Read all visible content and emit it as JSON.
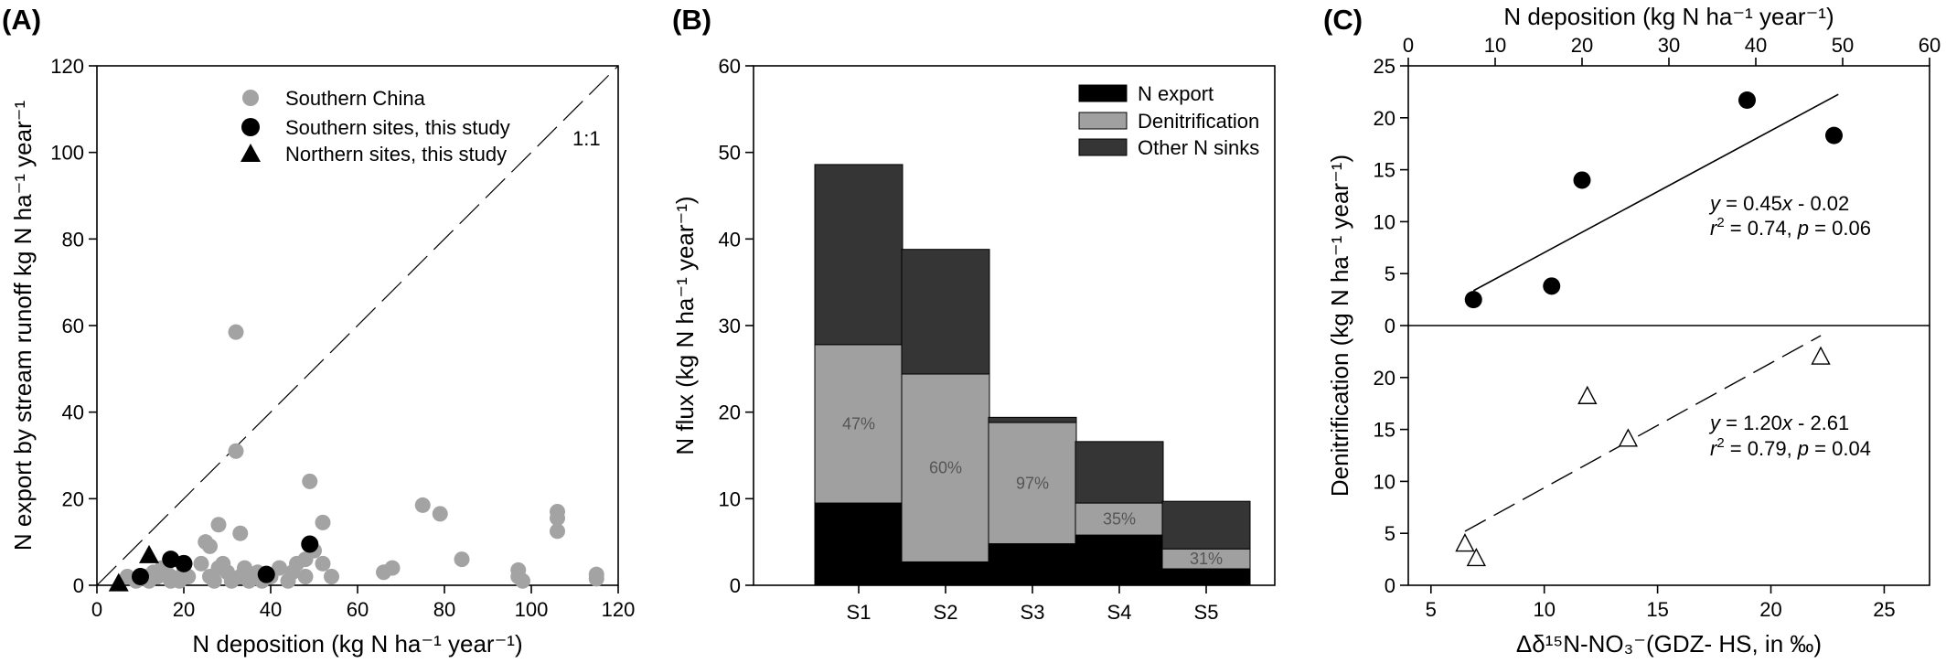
{
  "colors": {
    "gray": "#a3a3a3",
    "black": "#000000",
    "dark": "#353535",
    "mid": "#a0a0a0",
    "pct": "#555555"
  },
  "chart_data": [
    {
      "panel": "(A)",
      "type": "scatter",
      "xlabel": "N deposition (kg N ha⁻¹ year⁻¹)",
      "ylabel": "N export by stream runoff kg N ha⁻¹ year⁻¹",
      "xlim": [
        0,
        120
      ],
      "ylim": [
        0,
        120
      ],
      "xticks": [
        0,
        20,
        40,
        60,
        80,
        100,
        120
      ],
      "yticks": [
        0,
        20,
        40,
        60,
        80,
        100,
        120
      ],
      "ref_line_label": "1:1",
      "legend_position": "top-center",
      "series": [
        {
          "name": "Southern China",
          "marker": "circle",
          "color": "#a3a3a3",
          "x": [
            7,
            9,
            11,
            12,
            13,
            14,
            15,
            16,
            17,
            17,
            19,
            20,
            21,
            24,
            25,
            26,
            26,
            27,
            28,
            28,
            29,
            30,
            31,
            32,
            32,
            33,
            33,
            34,
            35,
            36,
            37,
            38,
            40,
            42,
            44,
            45,
            46,
            48,
            48,
            49,
            50,
            52,
            52,
            54,
            66,
            68,
            75,
            79,
            84,
            97,
            97,
            98,
            106,
            106,
            106,
            115,
            115
          ],
          "y": [
            2,
            1,
            2,
            1,
            3,
            2,
            4,
            3,
            1,
            2,
            1,
            3,
            2,
            5,
            10,
            9,
            2,
            1,
            14,
            4,
            5,
            3,
            1,
            58.5,
            31,
            12,
            2,
            4,
            1,
            2,
            3,
            1,
            2,
            4,
            1,
            3,
            5,
            6,
            2,
            24,
            8,
            5,
            14.5,
            2,
            3,
            4,
            18.5,
            16.5,
            6,
            3.5,
            2,
            1,
            17,
            15.5,
            12.5,
            2.5,
            1.5
          ]
        },
        {
          "name": "Southern sites, this study",
          "marker": "circle",
          "color": "#000000",
          "x": [
            10,
            17,
            20,
            39,
            49
          ],
          "y": [
            2,
            6,
            5,
            2.5,
            9.5
          ]
        },
        {
          "name": "Northern sites, this study",
          "marker": "triangle",
          "color": "#000000",
          "x": [
            5,
            12
          ],
          "y": [
            0.5,
            7
          ]
        }
      ]
    },
    {
      "panel": "(B)",
      "type": "bar",
      "stacked": true,
      "ylabel": "N flux (kg N ha⁻¹ year⁻¹)",
      "ylim": [
        0,
        60
      ],
      "yticks": [
        0,
        10,
        20,
        30,
        40,
        50,
        60
      ],
      "categories": [
        "S1",
        "S2",
        "S3",
        "S4",
        "S5"
      ],
      "legend_position": "top-right",
      "series": [
        {
          "name": "N export",
          "color": "#000000",
          "values": [
            9.5,
            2.7,
            4.8,
            5.8,
            1.9
          ]
        },
        {
          "name": "Denitrification",
          "color": "#a0a0a0",
          "values": [
            18.3,
            21.7,
            14.0,
            3.7,
            2.3
          ]
        },
        {
          "name": "Other N sinks",
          "color": "#353535",
          "values": [
            20.8,
            14.4,
            0.6,
            7.1,
            5.5
          ]
        }
      ],
      "percent_labels": [
        "47%",
        "60%",
        "97%",
        "35%",
        "31%"
      ]
    },
    {
      "panel": "(C)",
      "type": "scatter",
      "ylabel": "Denitrification (kg N ha⁻¹ year⁻¹)",
      "top_xlabel": "N deposition (kg N ha⁻¹ year⁻¹)",
      "bottom_xlabel": "Δδ¹⁵N-NO₃⁻(GDZ-  HS, in ‰)",
      "top_xlim": [
        0,
        60
      ],
      "top_xticks": [
        0,
        10,
        20,
        30,
        40,
        50,
        60
      ],
      "bottom_xlim": [
        4,
        27
      ],
      "bottom_xticks": [
        5,
        10,
        15,
        20,
        25
      ],
      "upper_ylim": [
        0,
        25
      ],
      "upper_yticks": [
        0,
        5,
        10,
        15,
        20,
        25
      ],
      "lower_ylim": [
        0,
        25
      ],
      "lower_yticks": [
        0,
        5,
        10,
        15,
        20
      ],
      "upper": {
        "x_axis": "N deposition",
        "marker": "circle-filled",
        "x": [
          7.5,
          16.5,
          20,
          39,
          49
        ],
        "y": [
          2.5,
          3.8,
          14,
          21.7,
          18.3
        ],
        "fit": {
          "slope": 0.45,
          "intercept": -0.02,
          "x_range": [
            7.5,
            49.5
          ],
          "style": "solid"
        },
        "eq_prefix": "y",
        "eq_body": " = 0.45",
        "eq_x": "x",
        "eq_tail": " - 0.02",
        "r2_prefix": "r",
        "r2_sup": "2",
        "r2_body": " = 0.74, ",
        "p_prefix": "p",
        "p_body": " = 0.06"
      },
      "lower": {
        "x_axis": "Δδ¹⁵N-NO₃⁻",
        "marker": "triangle-open",
        "x": [
          6.5,
          7.0,
          11.9,
          13.7,
          22.2
        ],
        "y": [
          4.0,
          2.6,
          18.2,
          14.1,
          22.0
        ],
        "fit": {
          "slope": 1.2,
          "intercept": -2.61,
          "x_range": [
            6.5,
            22.2
          ],
          "style": "dashed"
        },
        "eq_prefix": "y",
        "eq_body": " = 1.20",
        "eq_x": "x",
        "eq_tail": " - 2.61",
        "r2_prefix": "r",
        "r2_sup": "2",
        "r2_body": " = 0.79, ",
        "p_prefix": "p",
        "p_body": " = 0.04"
      }
    }
  ]
}
